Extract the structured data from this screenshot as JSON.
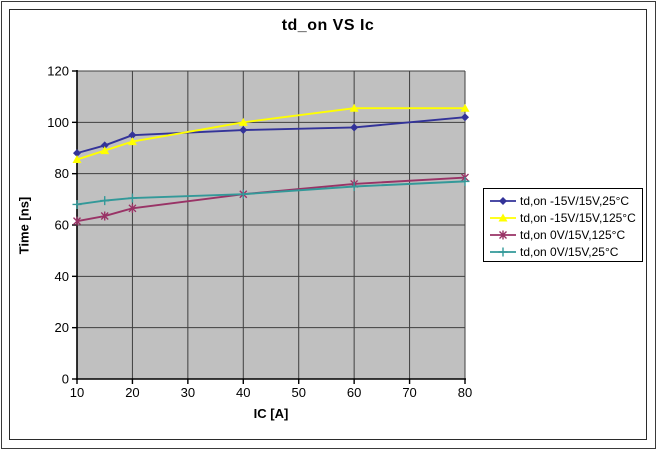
{
  "window": {
    "background": "#ffffff",
    "frame_border_color": "#2b2b2b"
  },
  "chart_data": {
    "type": "line",
    "title": "td_on VS Ic",
    "xlabel": "IC [A]",
    "ylabel": "Time [ns]",
    "x": [
      10,
      15,
      20,
      40,
      60,
      80
    ],
    "xlim": [
      10,
      80
    ],
    "ylim": [
      0,
      120
    ],
    "x_ticks": [
      10,
      20,
      30,
      40,
      50,
      60,
      70,
      80
    ],
    "y_ticks": [
      0,
      20,
      40,
      60,
      80,
      100,
      120
    ],
    "grid": true,
    "plot_bg": "#c0c0c0",
    "grid_color": "#3f3f3f",
    "axis_color": "#000000",
    "legend_position": "right",
    "series": [
      {
        "name": "td,on -15V/15V,25°C",
        "color": "#333399",
        "marker": "diamond",
        "values": [
          88,
          91,
          95,
          97,
          98,
          102
        ]
      },
      {
        "name": "td,on -15V/15V,125°C",
        "color": "#ffff00",
        "marker": "triangle",
        "values": [
          85.5,
          89,
          92.5,
          100,
          105.5,
          105.5
        ]
      },
      {
        "name": "td,on 0V/15V,125°C",
        "color": "#993366",
        "marker": "star",
        "values": [
          61.5,
          63.5,
          66.5,
          72,
          76,
          78.5
        ]
      },
      {
        "name": "td,on 0V/15V,25°C",
        "color": "#339999",
        "marker": "plus",
        "values": [
          68,
          69.5,
          70.5,
          72,
          75,
          77
        ]
      }
    ]
  }
}
